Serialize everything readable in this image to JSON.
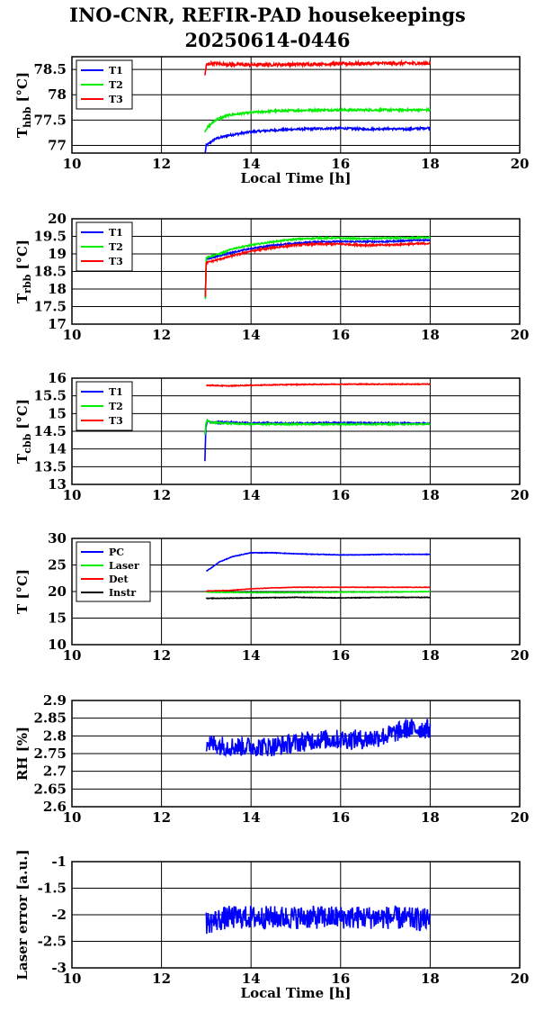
{
  "figure": {
    "title_line1": "INO-CNR, REFIR-PAD housekeepings",
    "title_line2": "20250614-0446"
  },
  "colors": {
    "blue": "#0000ff",
    "green": "#00ee00",
    "red": "#ff0000",
    "black": "#000000"
  },
  "chart_data": [
    {
      "id": "thbb",
      "type": "line",
      "ylabel": "T",
      "ylabel_sub": "hbb",
      "ylabel_unit": "[°C]",
      "xlabel": "Local Time [h]",
      "xlim": [
        10,
        20
      ],
      "ylim": [
        76.85,
        78.75
      ],
      "xticks": [
        10,
        12,
        14,
        16,
        18,
        20
      ],
      "yticks": [
        77,
        77.5,
        78,
        78.5
      ],
      "grid": true,
      "legend_position": "top-left",
      "series": [
        {
          "name": "T1",
          "color": "blue",
          "x": [
            12.97,
            13.0,
            13.2,
            13.5,
            14.0,
            14.5,
            15.0,
            15.5,
            16.0,
            16.5,
            17.0,
            17.5,
            18.0
          ],
          "y": [
            76.82,
            77.0,
            77.13,
            77.2,
            77.27,
            77.3,
            77.32,
            77.33,
            77.34,
            77.32,
            77.33,
            77.32,
            77.35
          ],
          "noise": 0.02
        },
        {
          "name": "T2",
          "color": "green",
          "x": [
            12.97,
            13.0,
            13.2,
            13.5,
            14.0,
            14.5,
            15.0,
            15.5,
            16.0,
            16.5,
            17.0,
            17.5,
            18.0
          ],
          "y": [
            77.28,
            77.33,
            77.5,
            77.6,
            77.65,
            77.68,
            77.69,
            77.7,
            77.7,
            77.7,
            77.7,
            77.7,
            77.7
          ],
          "noise": 0.02
        },
        {
          "name": "T3",
          "color": "red",
          "x": [
            12.97,
            13.0,
            13.1,
            13.5,
            14.0,
            15.0,
            16.0,
            17.0,
            18.0
          ],
          "y": [
            78.38,
            78.58,
            78.62,
            78.6,
            78.59,
            78.6,
            78.61,
            78.62,
            78.62
          ],
          "noise": 0.03
        }
      ]
    },
    {
      "id": "trbb",
      "type": "line",
      "ylabel": "T",
      "ylabel_sub": "rbb",
      "ylabel_unit": "[°C]",
      "xlabel": "",
      "xlim": [
        10,
        20
      ],
      "ylim": [
        17,
        20
      ],
      "xticks": [
        10,
        12,
        14,
        16,
        18,
        20
      ],
      "yticks": [
        17,
        17.5,
        18,
        18.5,
        19,
        19.5,
        20
      ],
      "grid": true,
      "legend_position": "top-left",
      "series": [
        {
          "name": "T1",
          "color": "blue",
          "x": [
            12.98,
            13.0,
            13.3,
            13.6,
            14.0,
            14.5,
            15.0,
            15.5,
            16.0,
            16.5,
            17.0,
            17.5,
            18.0
          ],
          "y": [
            17.75,
            18.85,
            18.95,
            19.05,
            19.15,
            19.25,
            19.3,
            19.35,
            19.35,
            19.35,
            19.35,
            19.38,
            19.4
          ],
          "noise": 0.02
        },
        {
          "name": "T2",
          "color": "green",
          "x": [
            12.98,
            13.0,
            13.3,
            13.6,
            14.0,
            14.5,
            15.0,
            15.5,
            16.0,
            16.5,
            17.0,
            17.5,
            18.0
          ],
          "y": [
            17.7,
            18.9,
            19.0,
            19.15,
            19.25,
            19.35,
            19.42,
            19.45,
            19.45,
            19.43,
            19.45,
            19.45,
            19.48
          ],
          "noise": 0.02
        },
        {
          "name": "T3",
          "color": "red",
          "x": [
            12.98,
            13.0,
            13.3,
            13.6,
            14.0,
            14.5,
            15.0,
            15.5,
            16.0,
            16.5,
            17.0,
            17.5,
            18.0
          ],
          "y": [
            17.8,
            18.75,
            18.85,
            18.95,
            19.08,
            19.18,
            19.25,
            19.28,
            19.28,
            19.25,
            19.25,
            19.28,
            19.3
          ],
          "noise": 0.025
        }
      ]
    },
    {
      "id": "tcbb",
      "type": "line",
      "ylabel": "T",
      "ylabel_sub": "cbb",
      "ylabel_unit": "[°C]",
      "xlabel": "",
      "xlim": [
        10,
        20
      ],
      "ylim": [
        13,
        16
      ],
      "xticks": [
        10,
        12,
        14,
        16,
        18,
        20
      ],
      "yticks": [
        13,
        13.5,
        14,
        14.5,
        15,
        15.5,
        16
      ],
      "grid": true,
      "legend_position": "top-left",
      "series": [
        {
          "name": "T1",
          "color": "blue",
          "x": [
            12.97,
            12.99,
            13.02,
            13.1,
            13.5,
            14.0,
            15.0,
            16.0,
            17.0,
            18.0
          ],
          "y": [
            13.65,
            14.6,
            14.8,
            14.75,
            14.75,
            14.73,
            14.73,
            14.74,
            14.73,
            14.72
          ],
          "noise": 0.02
        },
        {
          "name": "T2",
          "color": "green",
          "x": [
            12.97,
            12.99,
            13.02,
            13.1,
            13.5,
            14.0,
            15.0,
            16.0,
            17.0,
            18.0
          ],
          "y": [
            14.4,
            14.7,
            14.8,
            14.75,
            14.72,
            14.7,
            14.7,
            14.7,
            14.7,
            14.7
          ],
          "noise": 0.02
        },
        {
          "name": "T3",
          "color": "red",
          "x": [
            13.0,
            13.5,
            14.0,
            15.0,
            16.0,
            17.0,
            18.0
          ],
          "y": [
            15.8,
            15.78,
            15.8,
            15.82,
            15.83,
            15.83,
            15.83
          ],
          "noise": 0.012
        }
      ]
    },
    {
      "id": "temps",
      "type": "line",
      "ylabel": "T [°C]",
      "ylabel_sub": "",
      "ylabel_unit": "",
      "xlabel": "",
      "xlim": [
        10,
        20
      ],
      "ylim": [
        10,
        30
      ],
      "xticks": [
        10,
        12,
        14,
        16,
        18,
        20
      ],
      "yticks": [
        10,
        15,
        20,
        25,
        30
      ],
      "grid": true,
      "legend_position": "top-left",
      "series": [
        {
          "name": "PC",
          "color": "blue",
          "x": [
            13.0,
            13.3,
            13.6,
            14.0,
            14.5,
            15.0,
            15.5,
            16.0,
            16.5,
            17.0,
            17.5,
            18.0
          ],
          "y": [
            23.8,
            25.6,
            26.6,
            27.3,
            27.3,
            27.1,
            27.0,
            26.9,
            26.9,
            27.0,
            27.0,
            27.0
          ],
          "noise": 0.05
        },
        {
          "name": "Laser",
          "color": "green",
          "x": [
            13.0,
            14.0,
            15.0,
            16.0,
            17.0,
            18.0
          ],
          "y": [
            19.9,
            19.8,
            19.8,
            19.9,
            19.9,
            20.0
          ],
          "noise": 0.05
        },
        {
          "name": "Det",
          "color": "red",
          "x": [
            13.0,
            13.5,
            14.0,
            14.5,
            15.0,
            16.0,
            17.0,
            18.0
          ],
          "y": [
            20.1,
            20.2,
            20.5,
            20.7,
            20.8,
            20.8,
            20.8,
            20.8
          ],
          "noise": 0.04
        },
        {
          "name": "Instr",
          "color": "black",
          "x": [
            13.0,
            14.0,
            15.0,
            16.0,
            17.0,
            18.0
          ],
          "y": [
            18.7,
            18.8,
            18.9,
            18.8,
            18.9,
            18.9
          ],
          "noise": 0.05
        }
      ]
    },
    {
      "id": "rh",
      "type": "line",
      "ylabel": "RH [%]",
      "ylabel_sub": "",
      "ylabel_unit": "",
      "xlabel": "",
      "xlim": [
        10,
        20
      ],
      "ylim": [
        2.6,
        2.9
      ],
      "xticks": [
        10,
        12,
        14,
        16,
        18,
        20
      ],
      "yticks": [
        2.6,
        2.65,
        2.7,
        2.75,
        2.8,
        2.85,
        2.9
      ],
      "grid": true,
      "legend_position": "none",
      "series": [
        {
          "name": "",
          "color": "blue",
          "x": [
            13.0,
            13.5,
            14.0,
            14.5,
            15.0,
            15.5,
            16.0,
            16.5,
            17.0,
            17.5,
            18.0
          ],
          "y": [
            2.78,
            2.77,
            2.77,
            2.77,
            2.78,
            2.79,
            2.79,
            2.79,
            2.8,
            2.82,
            2.82
          ],
          "noise": 0.028
        }
      ]
    },
    {
      "id": "laser",
      "type": "line",
      "ylabel": "Laser error [a.u.]",
      "ylabel_sub": "",
      "ylabel_unit": "",
      "xlabel": "Local Time [h]",
      "xlim": [
        10,
        20
      ],
      "ylim": [
        -3,
        -1
      ],
      "xticks": [
        10,
        12,
        14,
        16,
        18,
        20
      ],
      "yticks": [
        -3,
        -2.5,
        -2,
        -1.5,
        -1
      ],
      "grid": true,
      "legend_position": "none",
      "series": [
        {
          "name": "",
          "color": "blue",
          "x": [
            13.0,
            13.5,
            14.0,
            15.0,
            16.0,
            17.0,
            18.0
          ],
          "y": [
            -2.15,
            -2.05,
            -2.05,
            -2.05,
            -2.05,
            -2.05,
            -2.1
          ],
          "noise": 0.22
        }
      ]
    }
  ]
}
